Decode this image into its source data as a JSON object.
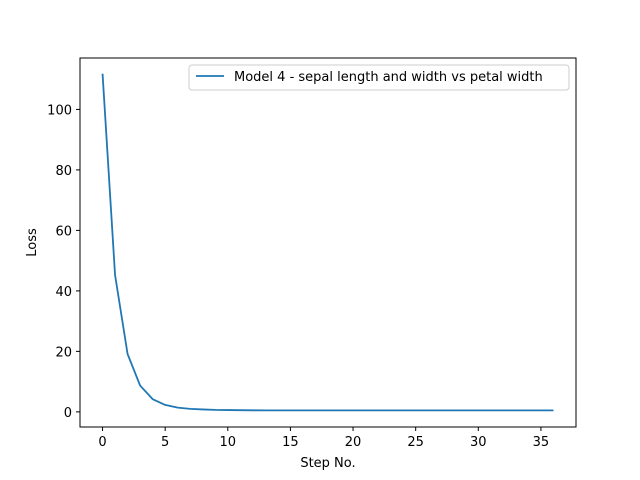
{
  "chart_data": {
    "type": "line",
    "title": "",
    "xlabel": "Step No.",
    "ylabel": "Loss",
    "xlim": [
      -1.8,
      37.8
    ],
    "ylim": [
      -5.0,
      117.0
    ],
    "xticks": [
      0,
      5,
      10,
      15,
      20,
      25,
      30,
      35
    ],
    "yticks": [
      0,
      20,
      40,
      60,
      80,
      100
    ],
    "grid": false,
    "legend_position": "top-right",
    "series": [
      {
        "name": "Model 4 - sepal length and width vs petal width",
        "color": "#1f77b4",
        "x": [
          0,
          1,
          2,
          3,
          4,
          5,
          6,
          7,
          8,
          9,
          10,
          11,
          12,
          13,
          14,
          15,
          16,
          17,
          18,
          19,
          20,
          21,
          22,
          23,
          24,
          25,
          26,
          27,
          28,
          29,
          30,
          31,
          32,
          33,
          34,
          35,
          36
        ],
        "y": [
          111.8,
          45.2,
          19.1,
          8.7,
          4.2,
          2.3,
          1.4,
          1.0,
          0.8,
          0.65,
          0.6,
          0.55,
          0.52,
          0.5,
          0.5,
          0.5,
          0.5,
          0.5,
          0.5,
          0.5,
          0.5,
          0.5,
          0.5,
          0.5,
          0.5,
          0.5,
          0.5,
          0.5,
          0.5,
          0.5,
          0.5,
          0.5,
          0.5,
          0.5,
          0.5,
          0.5,
          0.5
        ]
      }
    ]
  }
}
